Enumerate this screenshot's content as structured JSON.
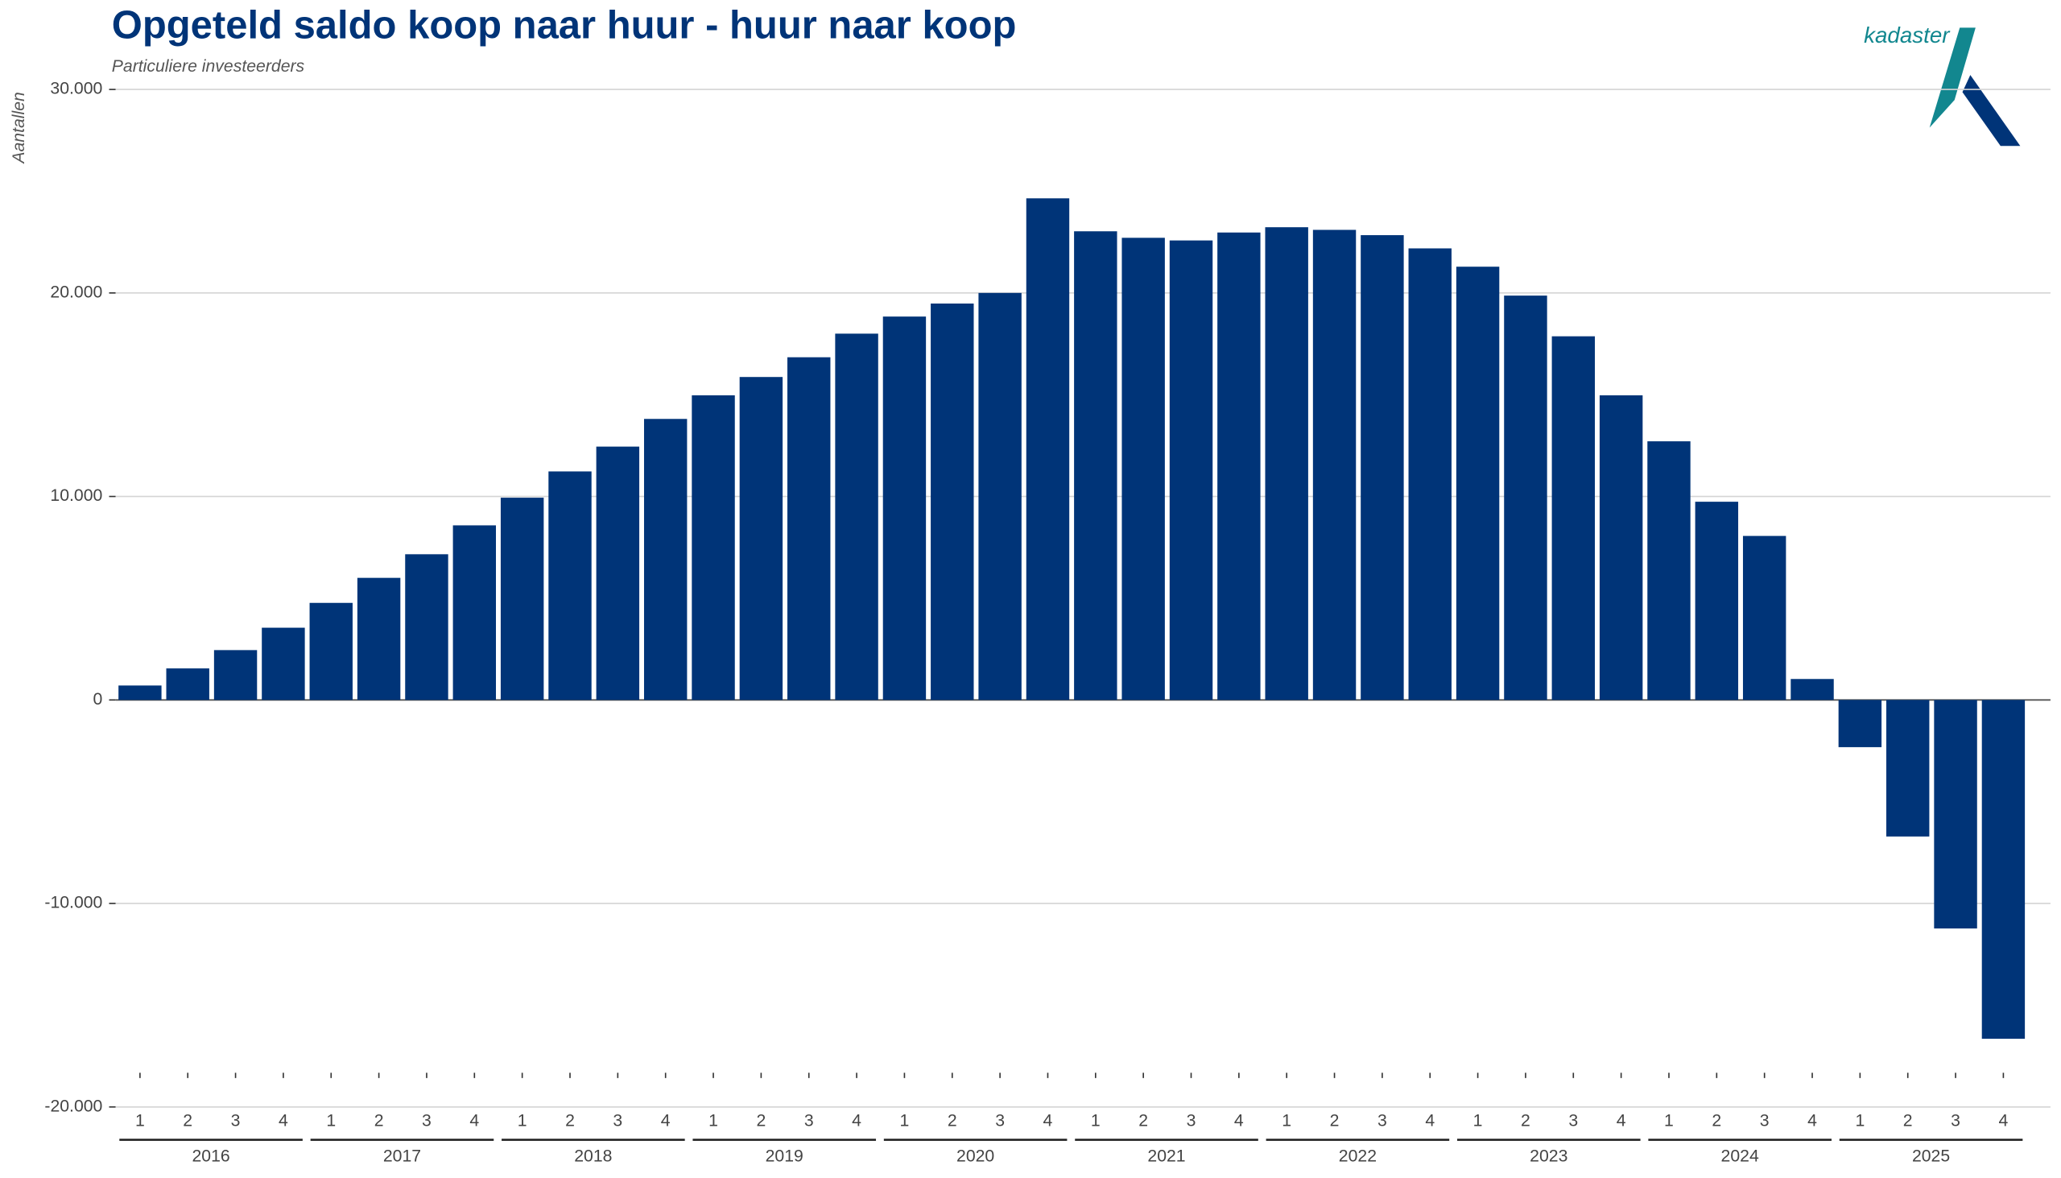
{
  "chart_data": {
    "type": "bar",
    "title": "Opgeteld saldo koop naar huur - huur naar koop",
    "subtitle": "Particuliere investeerders",
    "y_label": "Aantallen",
    "logo": "kadaster",
    "color": "#003478",
    "grid": true,
    "categories": [
      "1",
      "2",
      "3",
      "4",
      "1",
      "2",
      "3",
      "4",
      "1",
      "2",
      "3",
      "4",
      "1",
      "2",
      "3",
      "4",
      "1",
      "2",
      "3",
      "4",
      "1",
      "2",
      "3",
      "4",
      "1",
      "2",
      "3",
      "4",
      "1",
      "2",
      "3",
      "4",
      "1",
      "2",
      "3",
      "4",
      "1",
      "2",
      "3",
      "4"
    ],
    "year_groups": [
      "2016",
      "2017",
      "2018",
      "2019",
      "2020",
      "2021",
      "2022",
      "2023",
      "2024",
      "2025"
    ],
    "values": [
      710,
      1550,
      2450,
      3550,
      4770,
      6000,
      7160,
      8580,
      9940,
      11230,
      12450,
      13810,
      14970,
      15870,
      16840,
      18000,
      18840,
      19480,
      20000,
      24650,
      23030,
      22710,
      22580,
      22970,
      23230,
      23100,
      22840,
      22190,
      21290,
      19870,
      17870,
      14970,
      12710,
      9740,
      8060,
      1030,
      -2320,
      -6710,
      -11230,
      -16650
    ],
    "ylim": [
      -20000,
      30000
    ],
    "yticks": [
      {
        "value": -20000,
        "label": "-20.000"
      },
      {
        "value": -10000,
        "label": "-10.000"
      },
      0,
      {
        "value": 10000,
        "label": "10.000"
      },
      {
        "value": 20000,
        "label": "20.000"
      },
      {
        "value": 30000,
        "label": "30.000"
      }
    ]
  }
}
